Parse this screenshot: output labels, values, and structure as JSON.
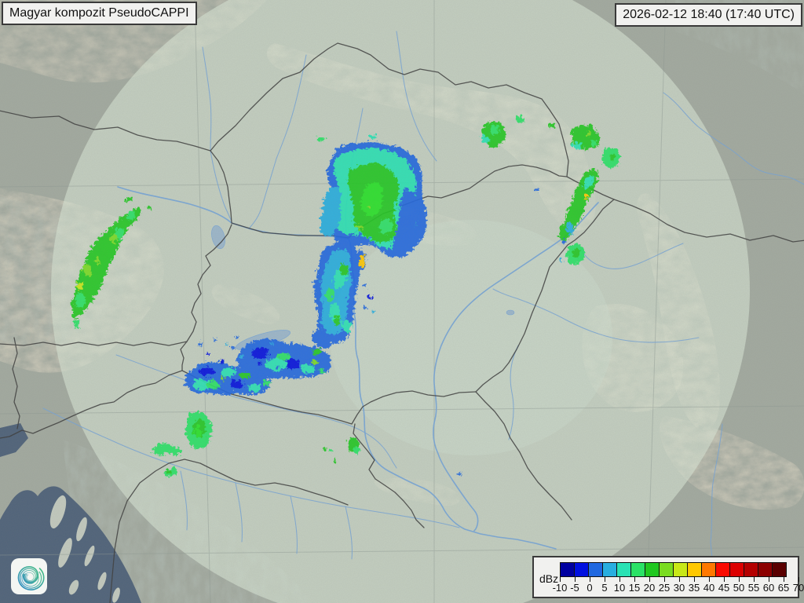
{
  "header": {
    "title": "Magyar kompozit  PseudoCAPPI",
    "timestamp": "2026-02-12 18:40 (17:40 UTC)"
  },
  "legend": {
    "unit": "dBz",
    "tick_labels": [
      "-10",
      "-5",
      "0",
      "5",
      "10",
      "15",
      "20",
      "25",
      "30",
      "35",
      "40",
      "45",
      "50",
      "55",
      "60",
      "65",
      "70"
    ],
    "colors": [
      "#0000a0",
      "#0010e0",
      "#2068e0",
      "#28aee0",
      "#2ae2b4",
      "#2ae266",
      "#20c820",
      "#7adc20",
      "#c8e818",
      "#ffc800",
      "#ff7800",
      "#fa0a00",
      "#dc0000",
      "#b40000",
      "#8c0000",
      "#5a0000"
    ]
  },
  "branding": {
    "logo_icon": "hungaromet-spiral-logo"
  },
  "palette": {
    "landOut": "#a3aaa0",
    "landIn": "#d7e3d4",
    "sea": "#51647b",
    "island": "#c3cabf",
    "border": "#3d3d3d",
    "river": "#78a5d6",
    "lake": "#9db7ca",
    "grid": "#8f9a94",
    "boxBg": "#f1f1ef",
    "boxBorder": "#3a3a3a",
    "eBlue": "#0010e0",
    "eMBlue": "#2068e0",
    "eLBlue": "#28aee0",
    "eCyan": "#2ae2b4",
    "eTeal": "#2ae266",
    "eGreen": "#20c820",
    "eBGreen": "#26e226",
    "eLime": "#7adc20",
    "eYGreen": "#c8e818",
    "eGold": "#ffc800"
  }
}
